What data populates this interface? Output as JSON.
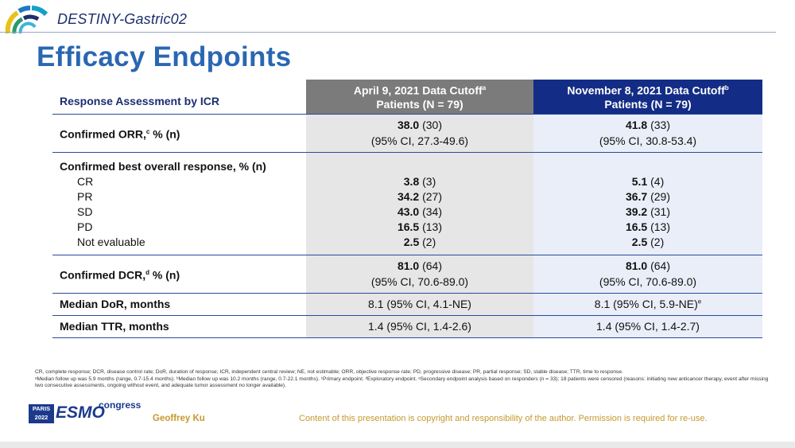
{
  "header": {
    "trial_name": "DESTINY-Gastric02"
  },
  "title": "Efficacy Endpoints",
  "table": {
    "col1_header": "Response Assessment by ICR",
    "col2_header_line1": "April 9, 2021 Data Cutoff",
    "col2_header_sup": "a",
    "col2_header_line2": "Patients (N = 79)",
    "col3_header_line1": "November 8, 2021 Data Cutoff",
    "col3_header_sup": "b",
    "col3_header_line2": "Patients (N = 79)",
    "orr": {
      "label_a": "Confirmed ORR,",
      "label_sup": "c",
      "label_b": " % (n)",
      "c2_bold": "38.0",
      "c2_n": " (30)",
      "c2_ci": "(95% CI, 27.3-49.6)",
      "c3_bold": "41.8",
      "c3_n": " (33)",
      "c3_ci": "(95% CI, 30.8-53.4)"
    },
    "bor": {
      "label": "Confirmed best overall response, % (n)",
      "rows": [
        {
          "label": "CR",
          "c2_bold": "3.8",
          "c2_n": " (3)",
          "c3_bold": "5.1",
          "c3_n": " (4)"
        },
        {
          "label": "PR",
          "c2_bold": "34.2",
          "c2_n": " (27)",
          "c3_bold": "36.7",
          "c3_n": " (29)"
        },
        {
          "label": "SD",
          "c2_bold": "43.0",
          "c2_n": " (34)",
          "c3_bold": "39.2",
          "c3_n": " (31)"
        },
        {
          "label": "PD",
          "c2_bold": "16.5",
          "c2_n": " (13)",
          "c3_bold": "16.5",
          "c3_n": " (13)"
        },
        {
          "label": "Not evaluable",
          "c2_bold": "2.5",
          "c2_n": " (2)",
          "c3_bold": "2.5",
          "c3_n": " (2)"
        }
      ]
    },
    "dcr": {
      "label_a": "Confirmed DCR,",
      "label_sup": "d",
      "label_b": " % (n)",
      "c2_bold": "81.0",
      "c2_n": " (64)",
      "c2_ci": "(95% CI, 70.6-89.0)",
      "c3_bold": "81.0",
      "c3_n": " (64)",
      "c3_ci": "(95% CI, 70.6-89.0)"
    },
    "dor": {
      "label": "Median DoR, months",
      "c2": "8.1 (95% CI, 4.1-NE)",
      "c3": "8.1 (95% CI, 5.9-NE)",
      "c3_sup": "e"
    },
    "ttr": {
      "label": "Median TTR, months",
      "c2": "1.4 (95% CI, 1.4-2.6)",
      "c3": "1.4 (95% CI, 1.4-2.7)"
    }
  },
  "footnotes": {
    "line1": "CR, complete response; DCR, disease control rate; DoR, duration of response; ICR, independent central review; NE, not estimable; ORR, objective response rate; PD, progressive disease; PR, partial response; SD, stable disease; TTR, time to response.",
    "line2": "ᵃMedian follow up was 5.9 months (range, 0.7-15.4 months). ᵇMedian follow up was 10.2 months (range, 0.7-22.1 months). ᶜPrimary endpoint. ᵈExploratory endpoint. ᵉSecondary endpoint analysis based on responders (n = 33); 18 patients were censored (reasons: initiating new anticancer therapy, event after missing two consecutive assessments, ongoing without event, and adequate tumor assessment no longer available)."
  },
  "footer": {
    "paris_line1": "PARIS",
    "paris_line2": "2022",
    "esmo": "ESMO",
    "congress": "congress",
    "presenter": "Geoffrey Ku",
    "copyright": "Content of this presentation is copyright and responsibility of the author. Permission is required for re-use."
  },
  "colors": {
    "title_blue": "#2a67b2",
    "navy": "#132c86",
    "grey_header": "#7b7b7b",
    "gold": "#c59a2e"
  }
}
